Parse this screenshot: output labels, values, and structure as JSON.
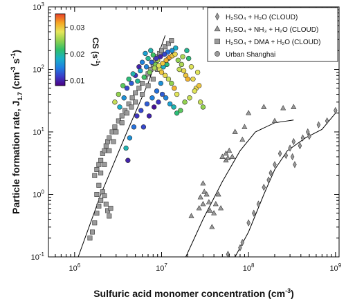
{
  "chart_data": {
    "type": "scatter",
    "xlabel_main": "Sulfuric acid monomer concentration (cm",
    "xlabel_sup": "-3",
    "xlabel_end": ")",
    "ylabel_main": "Particle formation rate, J",
    "ylabel_sub": "1.7",
    "ylabel_mid": " (cm",
    "ylabel_sup": "-3",
    "ylabel_mid2": " s",
    "ylabel_sup2": "-1",
    "ylabel_end": ")",
    "x_scale": "log",
    "y_scale": "log",
    "xlim": [
      500000,
      1100000000
    ],
    "ylim": [
      0.1,
      1000
    ],
    "x_ticks": [
      {
        "base": "10",
        "exp": "6",
        "v": 1000000
      },
      {
        "base": "10",
        "exp": "7",
        "v": 10000000
      },
      {
        "base": "10",
        "exp": "8",
        "v": 100000000
      },
      {
        "base": "10",
        "exp": "9",
        "v": 1000000000
      }
    ],
    "y_ticks": [
      {
        "base": "10",
        "exp": "-1",
        "v": 0.1
      },
      {
        "base": "10",
        "exp": "0",
        "v": 1
      },
      {
        "base": "10",
        "exp": "1",
        "v": 10
      },
      {
        "base": "10",
        "exp": "2",
        "v": 100
      },
      {
        "base": "10",
        "exp": "3",
        "v": 1000
      }
    ],
    "colorbar": {
      "title": "CS (s",
      "title_sup": "-1",
      "title_end": ")",
      "ticks": [
        {
          "label": "0.03",
          "v": 0.03
        },
        {
          "label": "0.02",
          "v": 0.02
        },
        {
          "label": "0.01",
          "v": 0.01
        }
      ],
      "range": [
        0.008,
        0.035
      ],
      "colors": [
        "#4b0082",
        "#3b3bc8",
        "#1f7fe0",
        "#19b0c8",
        "#2fbf6a",
        "#8fd14f",
        "#e6e65a",
        "#f5a623",
        "#e8402a"
      ]
    },
    "legend": [
      {
        "marker": "diamond",
        "text": "H₂SO₄ + H₂O (CLOUD)"
      },
      {
        "marker": "triangle",
        "text": "H₂SO₄ + NH₃ + H₂O (CLOUD)"
      },
      {
        "marker": "square",
        "text": "H₂SO₄ + DMA + H₂O (CLOUD)"
      },
      {
        "marker": "circle",
        "text": "Urban Shanghai"
      }
    ],
    "series": [
      {
        "name": "H₂SO₄ + H₂O (CLOUD)",
        "marker": "diamond",
        "color": "#9a9a9a",
        "points": [
          [
            58000000,
            0.11
          ],
          [
            80000000,
            0.14
          ],
          [
            85000000,
            0.17
          ],
          [
            100000000,
            0.35
          ],
          [
            115000000,
            0.5
          ],
          [
            130000000,
            0.7
          ],
          [
            150000000,
            1.3
          ],
          [
            170000000,
            1.7
          ],
          [
            180000000,
            2.2
          ],
          [
            200000000,
            3.0
          ],
          [
            230000000,
            4.5
          ],
          [
            270000000,
            4.2
          ],
          [
            300000000,
            5.5
          ],
          [
            330000000,
            7.0
          ],
          [
            320000000,
            4.0
          ],
          [
            340000000,
            3.0
          ],
          [
            390000000,
            6.0
          ],
          [
            420000000,
            8.0
          ],
          [
            480000000,
            10.0
          ],
          [
            500000000,
            8.5
          ],
          [
            640000000,
            13.0
          ],
          [
            800000000,
            15.0
          ],
          [
            1000000000,
            22.0
          ]
        ]
      },
      {
        "name": "H₂SO₄ + NH₃ + H₂O (CLOUD)",
        "marker": "triangle",
        "color": "#9a9a9a",
        "points": [
          [
            22000000,
            0.45
          ],
          [
            27000000,
            0.6
          ],
          [
            28000000,
            0.9
          ],
          [
            30000000,
            1.5
          ],
          [
            31000000,
            1.1
          ],
          [
            30000000,
            0.7
          ],
          [
            33000000,
            1.0
          ],
          [
            35000000,
            0.75
          ],
          [
            36000000,
            0.55
          ],
          [
            38000000,
            0.3
          ],
          [
            40000000,
            0.5
          ],
          [
            42000000,
            0.7
          ],
          [
            45000000,
            1.0
          ],
          [
            48000000,
            0.6
          ],
          [
            50000000,
            4.0
          ],
          [
            55000000,
            4.5
          ],
          [
            55000000,
            3.5
          ],
          [
            58000000,
            3.8
          ],
          [
            60000000,
            5.0
          ],
          [
            65000000,
            4.0
          ],
          [
            70000000,
            10.0
          ],
          [
            85000000,
            7.5
          ],
          [
            90000000,
            12.0
          ],
          [
            100000000,
            20.0
          ],
          [
            150000000,
            25.0
          ],
          [
            200000000,
            15.0
          ],
          [
            250000000,
            24.0
          ],
          [
            330000000,
            25.0
          ]
        ]
      },
      {
        "name": "H₂SO₄ + DMA + H₂O (CLOUD)",
        "marker": "square",
        "color": "#9a9a9a",
        "points": [
          [
            1500000,
            0.2
          ],
          [
            1600000,
            0.25
          ],
          [
            1700000,
            0.35
          ],
          [
            1800000,
            0.5
          ],
          [
            1900000,
            0.65
          ],
          [
            2000000,
            0.8
          ],
          [
            2100000,
            1.1
          ],
          [
            2200000,
            0.95
          ],
          [
            2300000,
            0.7
          ],
          [
            2400000,
            0.55
          ],
          [
            2500000,
            0.45
          ],
          [
            2600000,
            0.6
          ],
          [
            1700000,
            2.0
          ],
          [
            1800000,
            2.5
          ],
          [
            1900000,
            3.0
          ],
          [
            2000000,
            3.5
          ],
          [
            2100000,
            4.5
          ],
          [
            2200000,
            5.0
          ],
          [
            2300000,
            6.0
          ],
          [
            2400000,
            7.0
          ],
          [
            2500000,
            8.0
          ],
          [
            2700000,
            10.0
          ],
          [
            2900000,
            12.0
          ],
          [
            3200000,
            15.0
          ],
          [
            3500000,
            18.0
          ],
          [
            3800000,
            22.0
          ],
          [
            4200000,
            28.0
          ],
          [
            4600000,
            35.0
          ],
          [
            5000000,
            42.0
          ],
          [
            5500000,
            50.0
          ],
          [
            6000000,
            60.0
          ],
          [
            6500000,
            75.0
          ],
          [
            7000000,
            85.0
          ],
          [
            7500000,
            100.0
          ],
          [
            8000000,
            120.0
          ],
          [
            8500000,
            140.0
          ],
          [
            9000000,
            160.0
          ],
          [
            9500000,
            180.0
          ],
          [
            10000000,
            200.0
          ],
          [
            11000000,
            230.0
          ],
          [
            12000000,
            260.0
          ],
          [
            13000000,
            290.0
          ],
          [
            9000000,
            100.0
          ],
          [
            8000000,
            70.0
          ],
          [
            7000000,
            55.0
          ],
          [
            6000000,
            40.0
          ],
          [
            5000000,
            30.0
          ],
          [
            4500000,
            25.0
          ],
          [
            4000000,
            20.0
          ],
          [
            3500000,
            14.0
          ],
          [
            3000000,
            10.0
          ],
          [
            2800000,
            7.0
          ],
          [
            2500000,
            5.0
          ],
          [
            2200000,
            3.0
          ],
          [
            2000000,
            2.2
          ],
          [
            1900000,
            1.4
          ],
          [
            1800000,
            1.0
          ]
        ]
      },
      {
        "name": "Urban Shanghai",
        "marker": "circle",
        "color_by": "CS",
        "points": [
          [
            3300000,
            25,
            0.018
          ],
          [
            3700000,
            35,
            0.016
          ],
          [
            4000000,
            50,
            0.012
          ],
          [
            4500000,
            60,
            0.013
          ],
          [
            5000000,
            80,
            0.011
          ],
          [
            5500000,
            110,
            0.01
          ],
          [
            6000000,
            130,
            0.015
          ],
          [
            6500000,
            180,
            0.017
          ],
          [
            7000000,
            150,
            0.02
          ],
          [
            7500000,
            200,
            0.019
          ],
          [
            8000000,
            170,
            0.022
          ],
          [
            8500000,
            120,
            0.024
          ],
          [
            9000000,
            140,
            0.026
          ],
          [
            9500000,
            100,
            0.028
          ],
          [
            10000000,
            90,
            0.03
          ],
          [
            11000000,
            80,
            0.029
          ],
          [
            12000000,
            70,
            0.027
          ],
          [
            13000000,
            60,
            0.025
          ],
          [
            14000000,
            50,
            0.031
          ],
          [
            15000000,
            40,
            0.028
          ],
          [
            16000000,
            100,
            0.027
          ],
          [
            17000000,
            120,
            0.026
          ],
          [
            18000000,
            95,
            0.029
          ],
          [
            19000000,
            80,
            0.03
          ],
          [
            20000000,
            70,
            0.031
          ],
          [
            22000000,
            110,
            0.028
          ],
          [
            25000000,
            50,
            0.029
          ],
          [
            28000000,
            30,
            0.027
          ],
          [
            30000000,
            25,
            0.025
          ],
          [
            12000000,
            150,
            0.023
          ],
          [
            13500000,
            170,
            0.024
          ],
          [
            15500000,
            140,
            0.025
          ],
          [
            17500000,
            160,
            0.026
          ],
          [
            11500000,
            120,
            0.021
          ],
          [
            10500000,
            110,
            0.018
          ],
          [
            9800000,
            60,
            0.016
          ],
          [
            8800000,
            45,
            0.014
          ],
          [
            7800000,
            35,
            0.015
          ],
          [
            6800000,
            28,
            0.013
          ],
          [
            5800000,
            22,
            0.012
          ],
          [
            5200000,
            18,
            0.011
          ],
          [
            4800000,
            12,
            0.014
          ],
          [
            4300000,
            8,
            0.016
          ],
          [
            3900000,
            5.5,
            0.019
          ],
          [
            4100000,
            3.5,
            0.01
          ],
          [
            6200000,
            12,
            0.012
          ],
          [
            7200000,
            18,
            0.01
          ],
          [
            8200000,
            25,
            0.009
          ],
          [
            9200000,
            30,
            0.011
          ],
          [
            10200000,
            40,
            0.013
          ],
          [
            11200000,
            35,
            0.015
          ],
          [
            12500000,
            28,
            0.017
          ],
          [
            13800000,
            25,
            0.019
          ],
          [
            15000000,
            20,
            0.021
          ],
          [
            16500000,
            22,
            0.023
          ],
          [
            18500000,
            30,
            0.025
          ],
          [
            21000000,
            35,
            0.027
          ],
          [
            24000000,
            45,
            0.028
          ],
          [
            27000000,
            55,
            0.03
          ],
          [
            23000000,
            70,
            0.029
          ],
          [
            26000000,
            90,
            0.028
          ],
          [
            19500000,
            200,
            0.02
          ],
          [
            20500000,
            150,
            0.021
          ],
          [
            14500000,
            220,
            0.018
          ],
          [
            13200000,
            200,
            0.016
          ],
          [
            11800000,
            190,
            0.014
          ],
          [
            10800000,
            175,
            0.012
          ],
          [
            9700000,
            160,
            0.01
          ],
          [
            8700000,
            150,
            0.011
          ],
          [
            7700000,
            130,
            0.013
          ],
          [
            6700000,
            110,
            0.015
          ],
          [
            5700000,
            95,
            0.017
          ],
          [
            4700000,
            85,
            0.019
          ],
          [
            4200000,
            70,
            0.021
          ],
          [
            3600000,
            55,
            0.023
          ],
          [
            3200000,
            40,
            0.025
          ],
          [
            2900000,
            30,
            0.027
          ],
          [
            5300000,
            65,
            0.02
          ],
          [
            6300000,
            75,
            0.022
          ],
          [
            7300000,
            90,
            0.024
          ],
          [
            8300000,
            105,
            0.026
          ],
          [
            9300000,
            115,
            0.028
          ],
          [
            10300000,
            125,
            0.03
          ],
          [
            11300000,
            140,
            0.031
          ],
          [
            12300000,
            155,
            0.032
          ],
          [
            13300000,
            165,
            0.03
          ],
          [
            14300000,
            175,
            0.029
          ]
        ]
      }
    ],
    "fits": [
      {
        "name": "DMA fit",
        "points": [
          [
            1100000,
            0.1
          ],
          [
            2000000,
            1.0
          ],
          [
            4000000,
            10.0
          ],
          [
            7000000,
            60.0
          ],
          [
            11000000,
            350.0
          ]
        ]
      },
      {
        "name": "NH3 fit",
        "points": [
          [
            19000000,
            0.1
          ],
          [
            30000000,
            0.4
          ],
          [
            50000000,
            1.6
          ],
          [
            80000000,
            5.0
          ],
          [
            120000000,
            10.0
          ],
          [
            200000000,
            14.0
          ],
          [
            330000000,
            15.5
          ]
        ]
      },
      {
        "name": "H2O fit",
        "points": [
          [
            70000000,
            0.1
          ],
          [
            100000000,
            0.25
          ],
          [
            150000000,
            1.0
          ],
          [
            200000000,
            2.5
          ],
          [
            280000000,
            5.0
          ],
          [
            450000000,
            8.0
          ],
          [
            700000000,
            11.0
          ],
          [
            1000000000,
            20.0
          ]
        ]
      }
    ]
  }
}
